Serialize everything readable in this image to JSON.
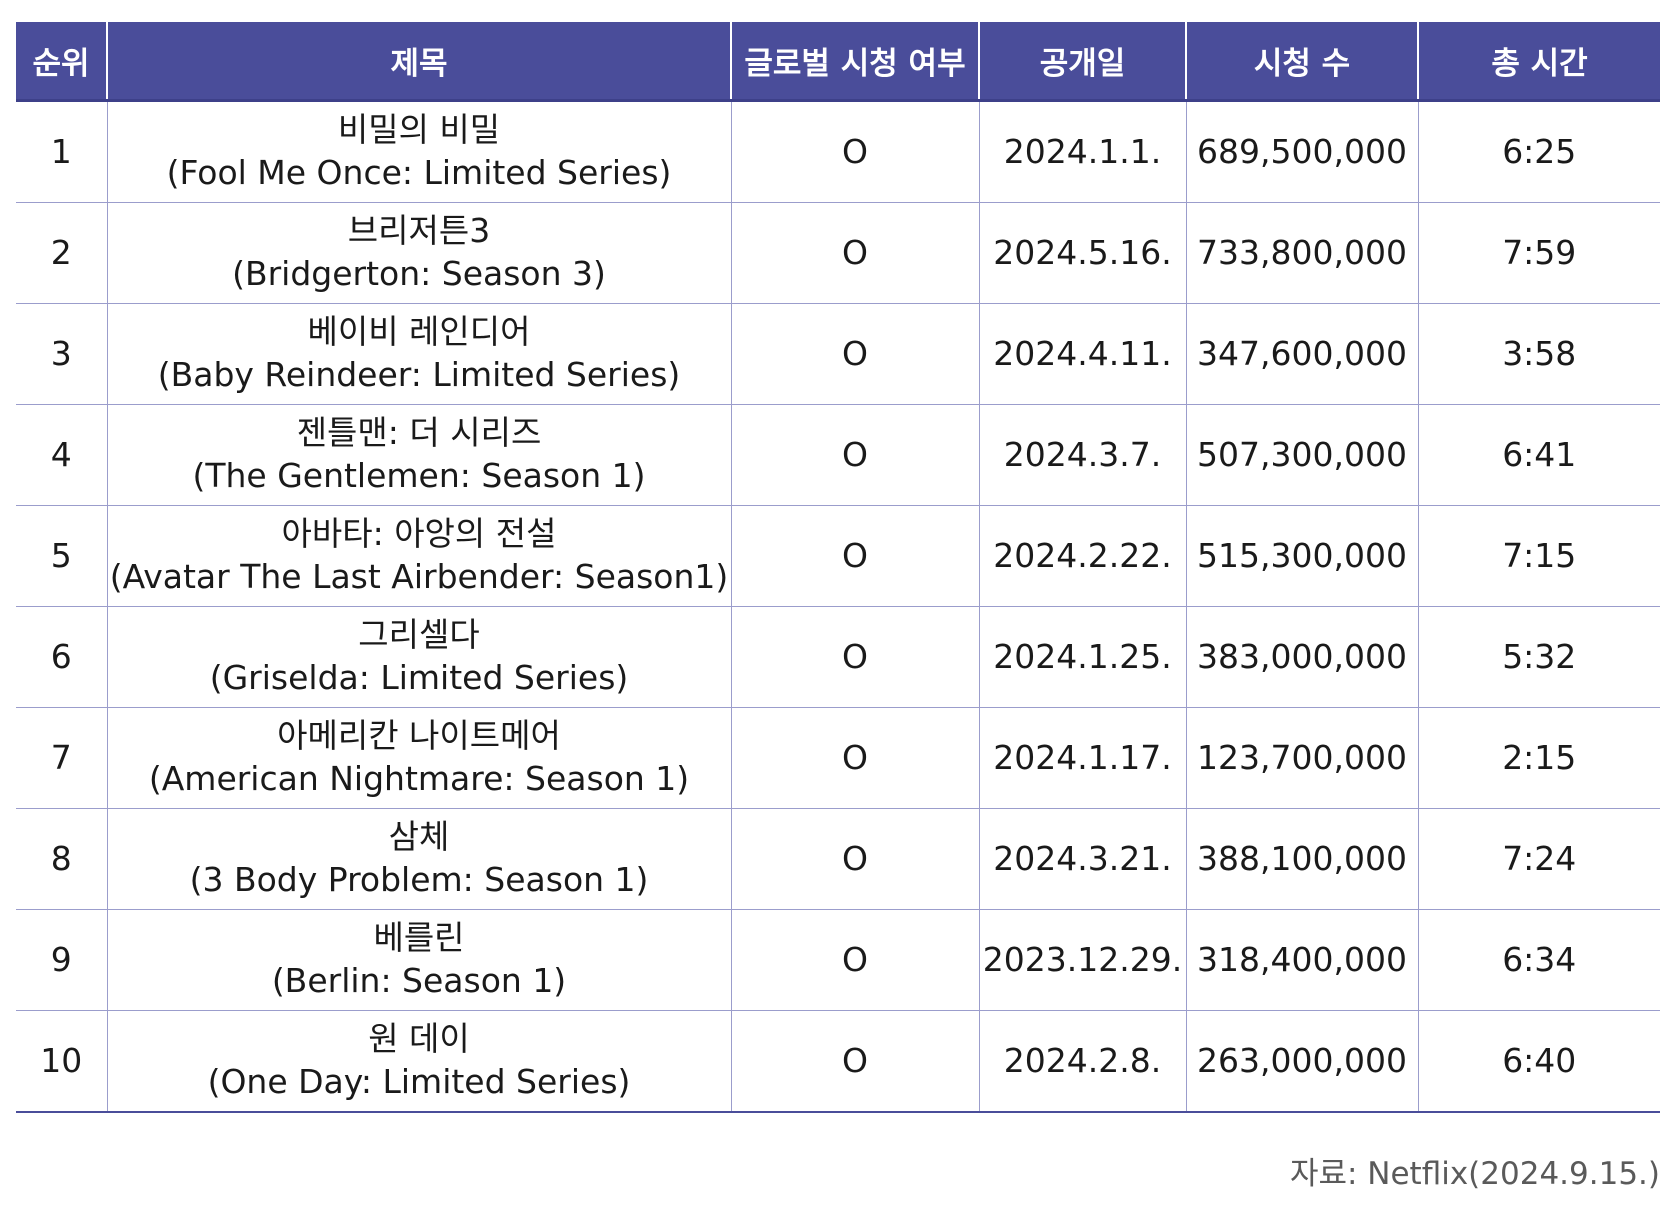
{
  "table": {
    "headers": [
      "순위",
      "제목",
      "글로벌 시청 여부",
      "공개일",
      "시청 수",
      "총 시간"
    ],
    "rows": [
      {
        "rank": "1",
        "title_ko": "비밀의 비밀",
        "title_en": "(Fool Me Once: Limited Series)",
        "global": "O",
        "release": "2024.1.1.",
        "views": "689,500,000",
        "hours": "6:25"
      },
      {
        "rank": "2",
        "title_ko": "브리저튼3",
        "title_en": "(Bridgerton: Season 3)",
        "global": "O",
        "release": "2024.5.16.",
        "views": "733,800,000",
        "hours": "7:59"
      },
      {
        "rank": "3",
        "title_ko": "베이비 레인디어",
        "title_en": "(Baby Reindeer: Limited Series)",
        "global": "O",
        "release": "2024.4.11.",
        "views": "347,600,000",
        "hours": "3:58"
      },
      {
        "rank": "4",
        "title_ko": "젠틀맨: 더 시리즈",
        "title_en": "(The Gentlemen: Season 1)",
        "global": "O",
        "release": "2024.3.7.",
        "views": "507,300,000",
        "hours": "6:41"
      },
      {
        "rank": "5",
        "title_ko": "아바타: 아앙의 전설",
        "title_en": "(Avatar The Last Airbender: Season1)",
        "global": "O",
        "release": "2024.2.22.",
        "views": "515,300,000",
        "hours": "7:15"
      },
      {
        "rank": "6",
        "title_ko": "그리셀다",
        "title_en": "(Griselda: Limited Series)",
        "global": "O",
        "release": "2024.1.25.",
        "views": "383,000,000",
        "hours": "5:32"
      },
      {
        "rank": "7",
        "title_ko": "아메리칸 나이트메어",
        "title_en": "(American Nightmare: Season 1)",
        "global": "O",
        "release": "2024.1.17.",
        "views": "123,700,000",
        "hours": "2:15"
      },
      {
        "rank": "8",
        "title_ko": "삼체",
        "title_en": "(3 Body Problem: Season 1)",
        "global": "O",
        "release": "2024.3.21.",
        "views": "388,100,000",
        "hours": "7:24"
      },
      {
        "rank": "9",
        "title_ko": "베를린",
        "title_en": "(Berlin: Season 1)",
        "global": "O",
        "release": "2023.12.29.",
        "views": "318,400,000",
        "hours": "6:34"
      },
      {
        "rank": "10",
        "title_ko": "원 데이",
        "title_en": "(One Day: Limited Series)",
        "global": "O",
        "release": "2024.2.8.",
        "views": "263,000,000",
        "hours": "6:40"
      }
    ]
  },
  "source": "자료: Netflix(2024.9.15.)",
  "colors": {
    "header_bg": "#4a4d9a",
    "header_text": "#ffffff",
    "grid_line": "#9b9dcc"
  }
}
